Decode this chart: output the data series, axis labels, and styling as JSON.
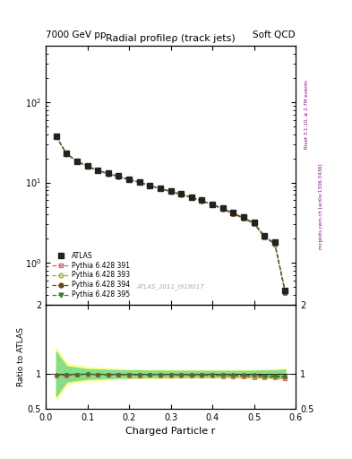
{
  "title_top_left": "7000 GeV pp",
  "title_top_right": "Soft QCD",
  "main_title": "Radial profileρ (track jets)",
  "watermark": "ATLAS_2011_I919017",
  "right_label_top": "Rivet 3.1.10, ≥ 2.7M events",
  "right_label_bottom": "mcplots.cern.ch [arXiv:1306.3436]",
  "xlabel": "Charged Particle r",
  "ylabel_ratio": "Ratio to ATLAS",
  "r_values": [
    0.025,
    0.05,
    0.075,
    0.1,
    0.125,
    0.15,
    0.175,
    0.2,
    0.225,
    0.25,
    0.275,
    0.3,
    0.325,
    0.35,
    0.375,
    0.4,
    0.425,
    0.45,
    0.475,
    0.5,
    0.525,
    0.55,
    0.575
  ],
  "atlas_values": [
    38,
    23,
    18.5,
    16,
    14.2,
    13.0,
    12.0,
    11.0,
    10.2,
    9.2,
    8.5,
    7.8,
    7.2,
    6.6,
    6.0,
    5.4,
    4.8,
    4.2,
    3.7,
    3.2,
    2.2,
    1.8,
    0.45
  ],
  "atlas_err_lo": [
    3,
    1.5,
    1.2,
    1.0,
    0.9,
    0.8,
    0.7,
    0.65,
    0.6,
    0.55,
    0.5,
    0.45,
    0.4,
    0.35,
    0.32,
    0.28,
    0.25,
    0.22,
    0.2,
    0.18,
    0.13,
    0.11,
    0.04
  ],
  "atlas_err_hi": [
    3,
    1.5,
    1.2,
    1.0,
    0.9,
    0.8,
    0.7,
    0.65,
    0.6,
    0.55,
    0.5,
    0.45,
    0.4,
    0.35,
    0.32,
    0.28,
    0.25,
    0.22,
    0.2,
    0.18,
    0.13,
    0.11,
    0.04
  ],
  "py391_values": [
    37,
    22.5,
    18.2,
    15.8,
    14.0,
    12.8,
    11.8,
    10.8,
    10.0,
    9.05,
    8.35,
    7.65,
    7.05,
    6.45,
    5.85,
    5.25,
    4.65,
    4.05,
    3.55,
    3.05,
    2.08,
    1.7,
    0.42
  ],
  "py393_values": [
    37.2,
    22.6,
    18.3,
    15.9,
    14.05,
    12.85,
    11.85,
    10.85,
    10.05,
    9.1,
    8.4,
    7.7,
    7.1,
    6.5,
    5.9,
    5.3,
    4.7,
    4.1,
    3.6,
    3.1,
    2.1,
    1.72,
    0.43
  ],
  "py394_values": [
    37.5,
    22.8,
    18.4,
    16.0,
    14.1,
    12.9,
    11.9,
    10.9,
    10.1,
    9.15,
    8.45,
    7.75,
    7.15,
    6.55,
    5.95,
    5.35,
    4.75,
    4.15,
    3.65,
    3.15,
    2.15,
    1.75,
    0.435
  ],
  "py395_values": [
    37.3,
    22.7,
    18.35,
    15.95,
    14.08,
    12.88,
    11.88,
    10.88,
    10.08,
    9.12,
    8.42,
    7.72,
    7.12,
    6.52,
    5.92,
    5.32,
    4.72,
    4.12,
    3.62,
    3.12,
    2.12,
    1.73,
    0.432
  ],
  "ratio391_values": [
    0.97,
    0.978,
    0.984,
    0.988,
    0.986,
    0.985,
    0.983,
    0.982,
    0.98,
    0.983,
    0.982,
    0.981,
    0.979,
    0.977,
    0.975,
    0.972,
    0.969,
    0.964,
    0.959,
    0.953,
    0.945,
    0.944,
    0.933
  ],
  "ratio393_values": [
    0.979,
    0.983,
    0.989,
    0.994,
    0.989,
    0.988,
    0.988,
    0.986,
    0.985,
    0.989,
    0.988,
    0.987,
    0.986,
    0.985,
    0.983,
    0.981,
    0.979,
    0.976,
    0.973,
    0.969,
    0.955,
    0.956,
    0.956
  ],
  "ratio394_values": [
    0.987,
    0.991,
    0.995,
    1.0,
    0.993,
    0.992,
    0.992,
    0.991,
    0.99,
    0.994,
    0.994,
    0.994,
    0.993,
    0.992,
    0.992,
    0.991,
    0.99,
    0.988,
    0.987,
    0.984,
    0.977,
    0.972,
    0.967
  ],
  "ratio395_values": [
    0.982,
    0.987,
    0.992,
    0.997,
    0.991,
    0.991,
    0.99,
    0.989,
    0.988,
    0.991,
    0.991,
    0.99,
    0.989,
    0.988,
    0.987,
    0.985,
    0.983,
    0.981,
    0.979,
    0.975,
    0.964,
    0.961,
    0.96
  ],
  "band_yellow_lo": [
    0.62,
    0.85,
    0.88,
    0.9,
    0.91,
    0.92,
    0.93,
    0.935,
    0.935,
    0.94,
    0.94,
    0.945,
    0.945,
    0.945,
    0.945,
    0.945,
    0.945,
    0.945,
    0.944,
    0.942,
    0.937,
    0.933,
    0.92
  ],
  "band_yellow_hi": [
    1.38,
    1.15,
    1.12,
    1.1,
    1.09,
    1.08,
    1.07,
    1.065,
    1.065,
    1.06,
    1.06,
    1.055,
    1.055,
    1.055,
    1.055,
    1.055,
    1.055,
    1.055,
    1.056,
    1.058,
    1.063,
    1.067,
    1.08
  ],
  "band_green_lo": [
    0.68,
    0.89,
    0.91,
    0.93,
    0.935,
    0.94,
    0.945,
    0.948,
    0.948,
    0.952,
    0.952,
    0.954,
    0.955,
    0.955,
    0.955,
    0.955,
    0.956,
    0.956,
    0.955,
    0.953,
    0.948,
    0.946,
    0.936
  ],
  "band_green_hi": [
    1.32,
    1.11,
    1.09,
    1.07,
    1.065,
    1.06,
    1.055,
    1.052,
    1.052,
    1.048,
    1.048,
    1.046,
    1.045,
    1.045,
    1.045,
    1.045,
    1.044,
    1.044,
    1.045,
    1.047,
    1.052,
    1.054,
    1.064
  ],
  "color_391": "#cc6666",
  "color_393": "#aaaa33",
  "color_394": "#664422",
  "color_395": "#447733",
  "color_atlas": "#222222",
  "ylim_main": [
    0.3,
    500
  ],
  "ylim_ratio": [
    0.5,
    2.0
  ],
  "xlim": [
    0.0,
    0.6
  ],
  "xticks": [
    0.0,
    0.1,
    0.2,
    0.3,
    0.4,
    0.5,
    0.6
  ],
  "yticks_ratio": [
    0.5,
    1.0,
    2.0
  ],
  "legend_loc": "lower left"
}
